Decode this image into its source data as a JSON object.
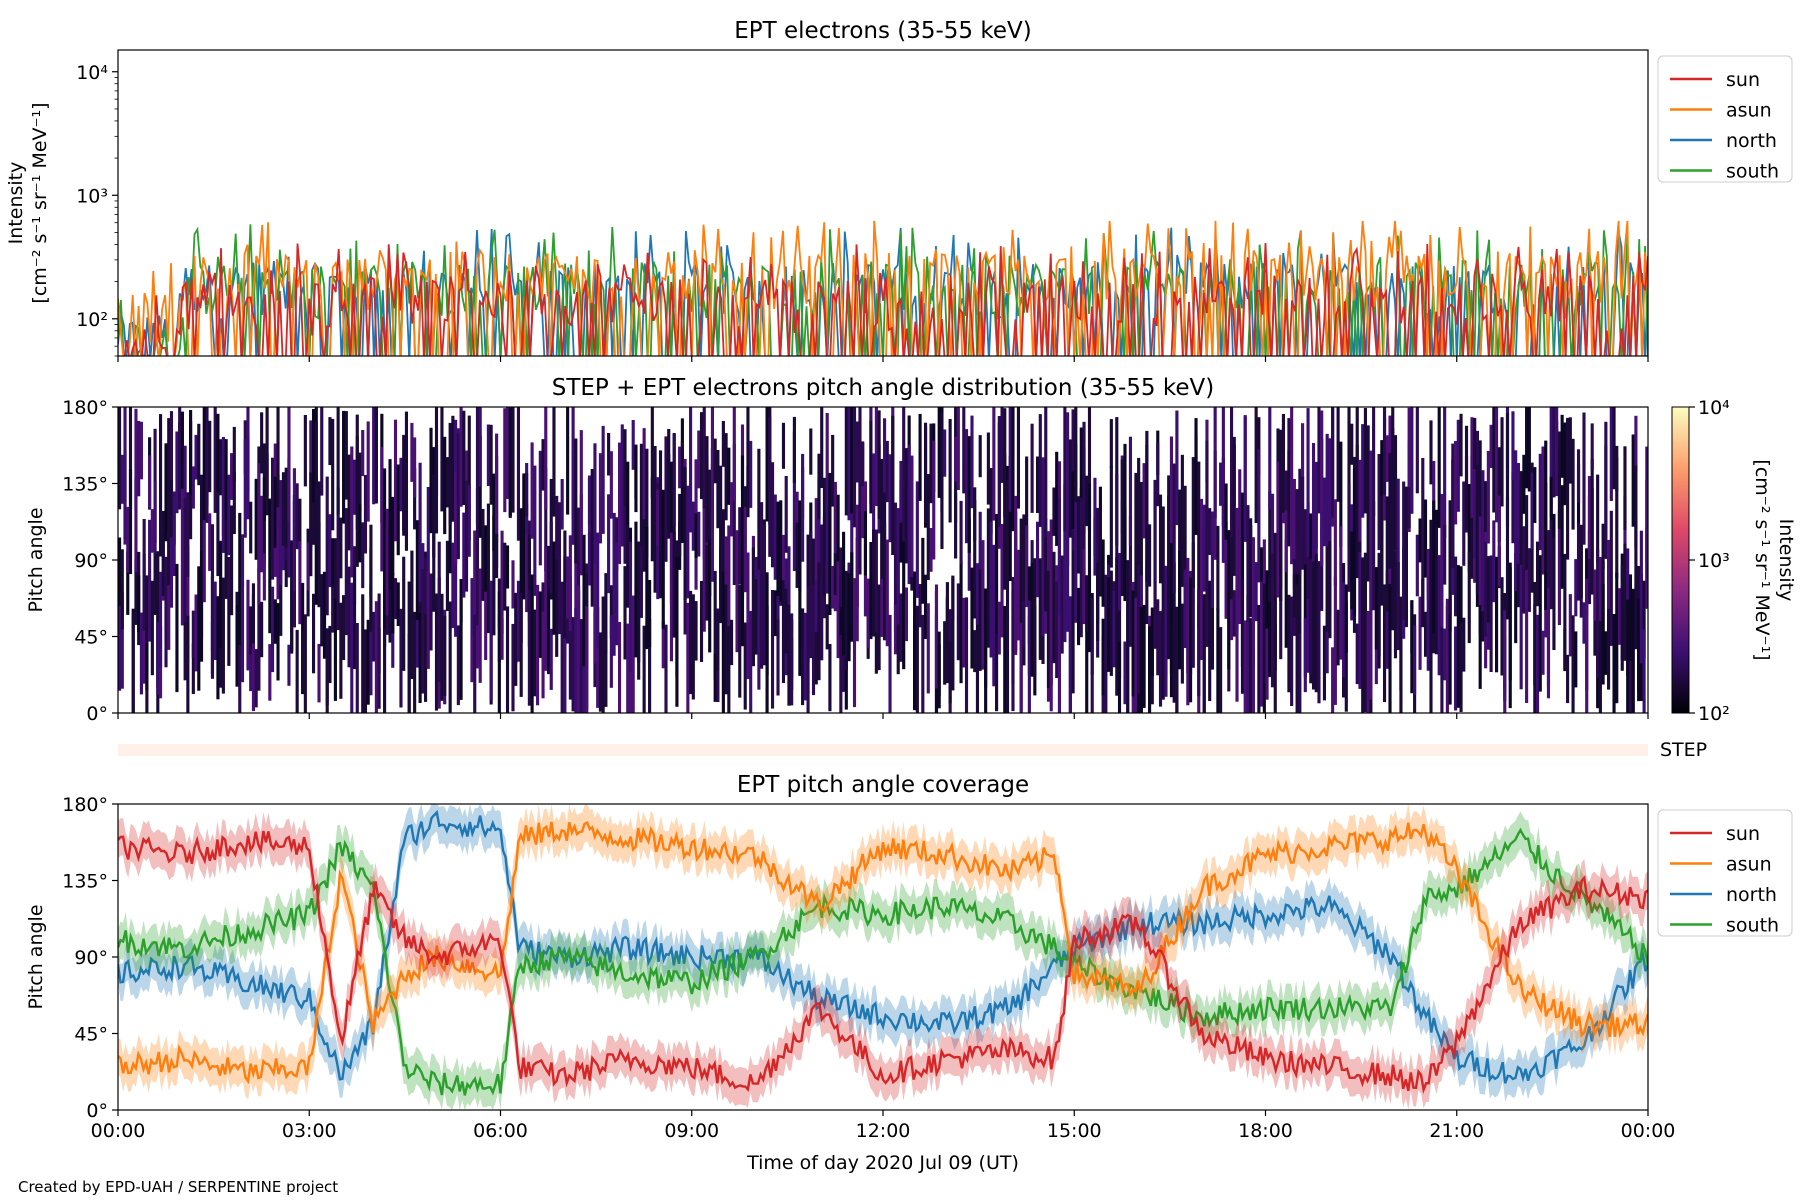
{
  "footer": {
    "credit": "Created by EPD-UAH / SERPENTINE project"
  },
  "colors": {
    "sun": "#d62728",
    "asun": "#ff7f0e",
    "north": "#1f77b4",
    "south": "#2ca02c",
    "step_band": "#fff0ea"
  },
  "chart_data": [
    {
      "type": "line",
      "title": "EPT electrons (35-55 keV)",
      "ylabel": [
        "Intensity",
        "[cm⁻² s⁻¹ sr⁻¹ MeV⁻¹]"
      ],
      "yscale": "log",
      "ylim": [
        50,
        15000
      ],
      "yticks": [
        {
          "value": 100,
          "label": "10²"
        },
        {
          "value": 1000,
          "label": "10³"
        },
        {
          "value": 10000,
          "label": "10⁴"
        }
      ],
      "xlim": [
        "00:00",
        "24:00"
      ],
      "legend": {
        "placement": "right-top",
        "entries": [
          "sun",
          "asun",
          "north",
          "south"
        ]
      },
      "series": [
        {
          "name": "sun",
          "color": "#d62728",
          "level": [
            60,
            160,
            160,
            140,
            160,
            160,
            150,
            160,
            165,
            150,
            150,
            160,
            155,
            160,
            160,
            155,
            160,
            165,
            160,
            160,
            160,
            170,
            160,
            160,
            155
          ],
          "peak": 450
        },
        {
          "name": "asun",
          "color": "#ff7f0e",
          "level": [
            120,
            250,
            240,
            230,
            260,
            250,
            240,
            250,
            250,
            240,
            240,
            250,
            245,
            240,
            250,
            245,
            250,
            260,
            250,
            250,
            250,
            260,
            250,
            255,
            250
          ],
          "peak": 620
        },
        {
          "name": "north",
          "color": "#1f77b4",
          "level": [
            80,
            200,
            210,
            200,
            210,
            200,
            200,
            210,
            210,
            200,
            200,
            210,
            205,
            200,
            210,
            205,
            210,
            210,
            200,
            210,
            205,
            210,
            200,
            210,
            205
          ],
          "peak": 600
        },
        {
          "name": "south",
          "color": "#2ca02c",
          "level": [
            80,
            200,
            220,
            200,
            220,
            200,
            205,
            210,
            215,
            200,
            200,
            210,
            205,
            200,
            210,
            210,
            210,
            215,
            205,
            210,
            205,
            215,
            200,
            210,
            205
          ],
          "peak": 640
        }
      ]
    },
    {
      "type": "heatmap",
      "title": "STEP + EPT electrons pitch angle distribution (35-55 keV)",
      "ylabel": "Pitch angle",
      "ylim": [
        0,
        180
      ],
      "yticks": [
        "0°",
        "45°",
        "90°",
        "135°",
        "180°"
      ],
      "colorbar": {
        "label": [
          "Intensity",
          "[cm⁻² s⁻¹ sr⁻¹ MeV⁻¹]"
        ],
        "scale": "log",
        "range": [
          100,
          10000
        ],
        "ticks": [
          "10²",
          "10³",
          "10⁴"
        ],
        "colormap": "inferno"
      },
      "step_label": "STEP"
    },
    {
      "type": "line",
      "title": "EPT pitch angle coverage",
      "ylabel": "Pitch angle",
      "xlabel": "Time of day 2020 Jul 09 (UT)",
      "ylim": [
        0,
        180
      ],
      "yticks": [
        "0°",
        "45°",
        "90°",
        "135°",
        "180°"
      ],
      "xticks": [
        "00:00",
        "03:00",
        "06:00",
        "09:00",
        "12:00",
        "15:00",
        "18:00",
        "21:00",
        "00:00"
      ],
      "legend": {
        "placement": "right-top",
        "entries": [
          "sun",
          "asun",
          "north",
          "south"
        ]
      },
      "x_hours": [
        0,
        1,
        2,
        3,
        3.5,
        4,
        4.5,
        5,
        6,
        6.3,
        7,
        8,
        9,
        10,
        11,
        12,
        13,
        14,
        14.7,
        15,
        16,
        17,
        18,
        19,
        20,
        20.5,
        21,
        22,
        22.5,
        23,
        24
      ],
      "series": [
        {
          "name": "sun",
          "color": "#d62728",
          "values": [
            155,
            150,
            158,
            155,
            40,
            130,
            100,
            90,
            100,
            25,
            20,
            30,
            25,
            15,
            60,
            20,
            30,
            35,
            30,
            100,
            110,
            45,
            30,
            25,
            20,
            15,
            40,
            110,
            120,
            130,
            125
          ]
        },
        {
          "name": "asun",
          "color": "#ff7f0e",
          "values": [
            25,
            30,
            22,
            25,
            140,
            50,
            80,
            90,
            80,
            160,
            165,
            160,
            155,
            150,
            120,
            155,
            150,
            140,
            150,
            80,
            70,
            130,
            150,
            155,
            160,
            165,
            140,
            70,
            60,
            50,
            50
          ]
        },
        {
          "name": "north",
          "color": "#1f77b4",
          "values": [
            80,
            85,
            75,
            65,
            20,
            50,
            160,
            170,
            165,
            95,
            90,
            95,
            90,
            90,
            65,
            55,
            50,
            60,
            85,
            95,
            110,
            110,
            115,
            120,
            90,
            55,
            30,
            20,
            30,
            40,
            90
          ]
        },
        {
          "name": "south",
          "color": "#2ca02c",
          "values": [
            100,
            95,
            105,
            115,
            155,
            130,
            25,
            15,
            15,
            85,
            90,
            80,
            75,
            90,
            120,
            115,
            120,
            110,
            95,
            85,
            70,
            55,
            60,
            60,
            60,
            125,
            130,
            160,
            140,
            125,
            90
          ]
        }
      ]
    }
  ]
}
